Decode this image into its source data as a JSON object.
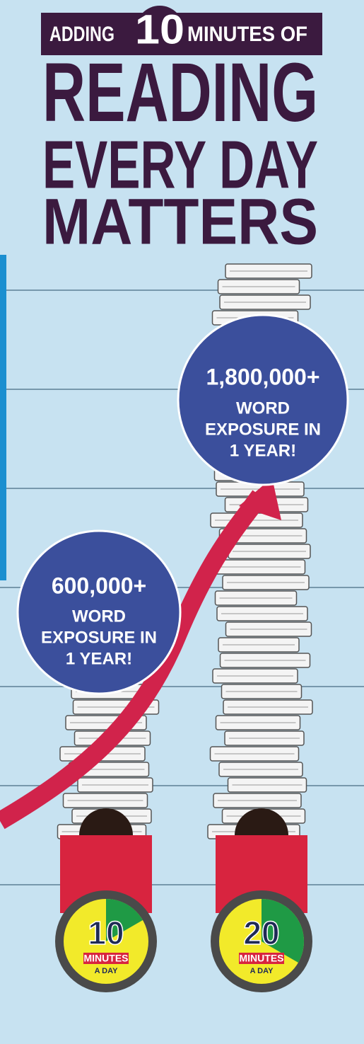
{
  "header": {
    "lead": "ADDING",
    "number": "10",
    "tail": "MINUTES OF",
    "lines": [
      "READING",
      "EVERY DAY",
      "MATTERS"
    ]
  },
  "bubbles": [
    {
      "amount": "1,800,000+",
      "lines": [
        "WORD",
        "EXPOSURE IN",
        "1 YEAR!"
      ]
    },
    {
      "amount": "600,000+",
      "lines": [
        "WORD",
        "EXPOSURE IN",
        "1 YEAR!"
      ]
    }
  ],
  "timers": [
    {
      "minutes": 10,
      "label": "MINUTES",
      "sub": "A DAY"
    },
    {
      "minutes": 20,
      "label": "MINUTES",
      "sub": "A DAY"
    }
  ]
}
